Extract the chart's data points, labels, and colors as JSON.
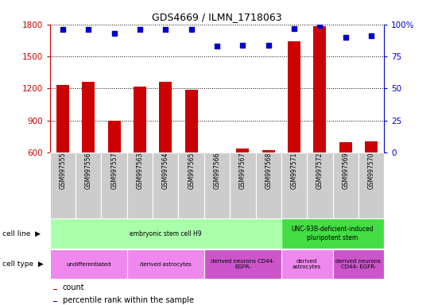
{
  "title": "GDS4669 / ILMN_1718063",
  "samples": [
    "GSM997555",
    "GSM997556",
    "GSM997557",
    "GSM997563",
    "GSM997564",
    "GSM997565",
    "GSM997566",
    "GSM997567",
    "GSM997568",
    "GSM997571",
    "GSM997572",
    "GSM997569",
    "GSM997570"
  ],
  "counts": [
    1230,
    1265,
    895,
    1215,
    1265,
    1185,
    600,
    635,
    625,
    1640,
    1780,
    700,
    705
  ],
  "percentiles": [
    96,
    96,
    93,
    96,
    96,
    96,
    83,
    84,
    84,
    97,
    99,
    90,
    91
  ],
  "ylim_left": [
    600,
    1800
  ],
  "ylim_right": [
    0,
    100
  ],
  "yticks_left": [
    600,
    900,
    1200,
    1500,
    1800
  ],
  "yticks_right": [
    0,
    25,
    50,
    75,
    100
  ],
  "ytick_right_labels": [
    "0",
    "25",
    "50",
    "75",
    "100%"
  ],
  "bar_color": "#cc0000",
  "dot_color": "#0000cc",
  "cell_line_groups": [
    {
      "label": "embryonic stem cell H9",
      "start": 0,
      "end": 9,
      "color": "#aaffaa"
    },
    {
      "label": "UNC-93B-deficient-induced\npluripotent stem",
      "start": 9,
      "end": 13,
      "color": "#44dd44"
    }
  ],
  "cell_type_groups": [
    {
      "label": "undifferentiated",
      "start": 0,
      "end": 3,
      "color": "#ee88ee"
    },
    {
      "label": "derived astrocytes",
      "start": 3,
      "end": 6,
      "color": "#ee88ee"
    },
    {
      "label": "derived neurons CD44-\nEGFR-",
      "start": 6,
      "end": 9,
      "color": "#cc55cc"
    },
    {
      "label": "derived\nastrocytes",
      "start": 9,
      "end": 11,
      "color": "#ee88ee"
    },
    {
      "label": "derived neurons\nCD44- EGFR-",
      "start": 11,
      "end": 13,
      "color": "#cc55cc"
    }
  ],
  "tick_bg_color": "#cccccc",
  "left_axis_color": "#cc0000",
  "right_axis_color": "#0000cc",
  "grid_color": "#000000"
}
